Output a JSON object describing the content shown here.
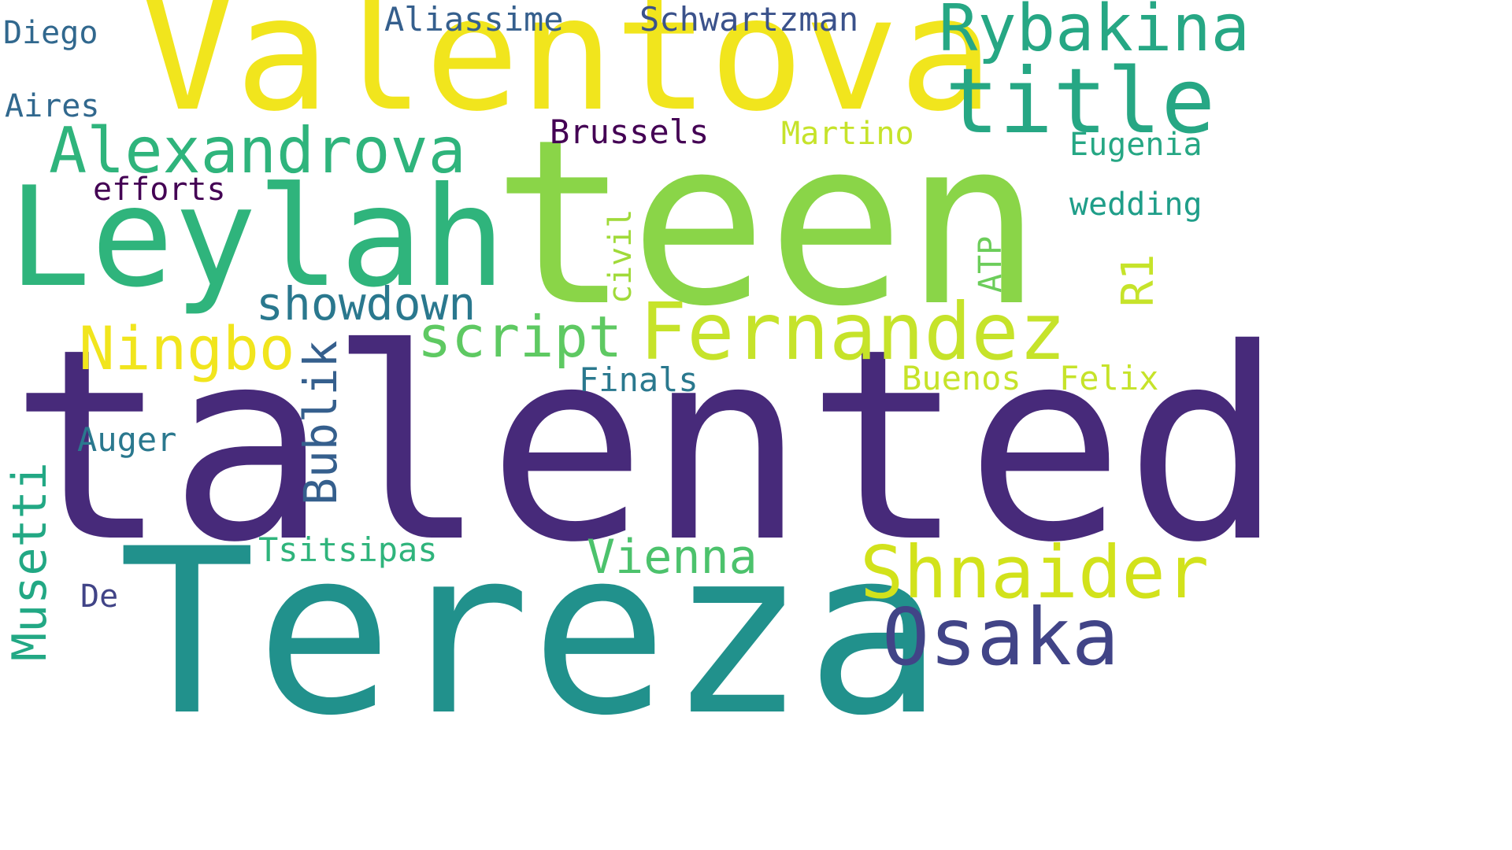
{
  "palette": {
    "yellow": "#f1e51d",
    "lime": "#c6e32a",
    "light_green": "#8ad548",
    "green": "#5ec962",
    "teal_green": "#2fb47c",
    "teal": "#26a784",
    "cyan_teal": "#21918c",
    "blue_teal": "#2a788e",
    "blue": "#355f8d",
    "indigo": "#414487",
    "purple": "#472a7a",
    "dark_purple": "#440154"
  },
  "words": [
    {
      "text": "talented",
      "color": "#472a7a"
    },
    {
      "text": "teen",
      "color": "#8ad548"
    },
    {
      "text": "Tereza",
      "color": "#21918c"
    },
    {
      "text": "Valentova",
      "color": "#f1e51d"
    },
    {
      "text": "Leylah",
      "color": "#2fb47c"
    },
    {
      "text": "Fernandez",
      "color": "#c6e32a"
    },
    {
      "text": "title",
      "color": "#26a784"
    },
    {
      "text": "Shnaider",
      "color": "#d2e21b"
    },
    {
      "text": "Osaka",
      "color": "#414487"
    },
    {
      "text": "Rybakina",
      "color": "#26a784"
    },
    {
      "text": "Alexandrova",
      "color": "#2fb47c"
    },
    {
      "text": "script",
      "color": "#5ec962"
    },
    {
      "text": "Ningbo",
      "color": "#f1e51d"
    },
    {
      "text": "showdown",
      "color": "#2a788e"
    },
    {
      "text": "Vienna",
      "color": "#4cc26c"
    },
    {
      "text": "Musetti",
      "color": "#22a884"
    },
    {
      "text": "Bublik",
      "color": "#355f8d"
    },
    {
      "text": "Aliassime",
      "color": "#355f8d"
    },
    {
      "text": "Schwartzman",
      "color": "#3b528b"
    },
    {
      "text": "Diego",
      "color": "#31688e"
    },
    {
      "text": "Aires",
      "color": "#31688e"
    },
    {
      "text": "efforts",
      "color": "#440154"
    },
    {
      "text": "Brussels",
      "color": "#440154"
    },
    {
      "text": "Martino",
      "color": "#c6e32a"
    },
    {
      "text": "Eugenia",
      "color": "#26a784"
    },
    {
      "text": "wedding",
      "color": "#1f9e89"
    },
    {
      "text": "civil",
      "color": "#a0da39"
    },
    {
      "text": "ATP",
      "color": "#6ccd5a"
    },
    {
      "text": "R1",
      "color": "#c6e32a"
    },
    {
      "text": "Finals",
      "color": "#2a788e"
    },
    {
      "text": "Buenos",
      "color": "#c6e32a"
    },
    {
      "text": "Felix",
      "color": "#c6e32a"
    },
    {
      "text": "Auger",
      "color": "#2a788e"
    },
    {
      "text": "Tsitsipas",
      "color": "#2fb47c"
    },
    {
      "text": "De",
      "color": "#414487"
    }
  ]
}
